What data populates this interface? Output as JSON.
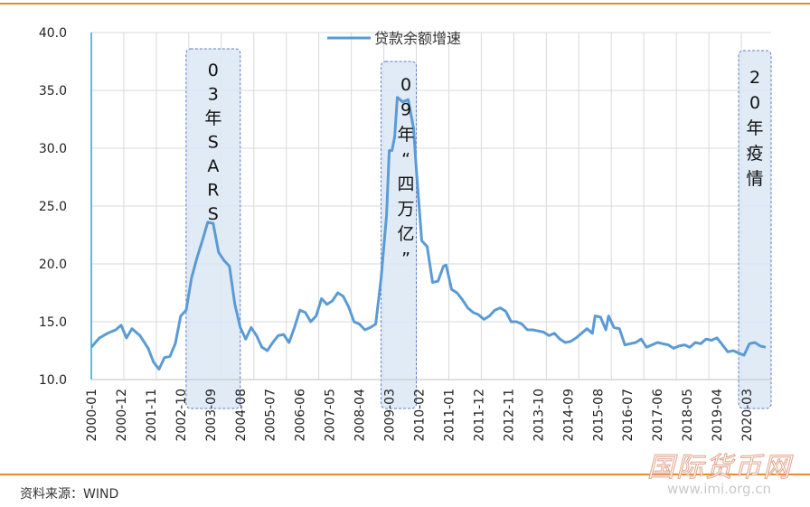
{
  "chart_data": {
    "type": "line",
    "title": "",
    "xlabel": "",
    "ylabel": "",
    "ylim": [
      10,
      40
    ],
    "yticks": [
      "10.0",
      "15.0",
      "20.0",
      "25.0",
      "30.0",
      "35.0",
      "40.0"
    ],
    "xticks": [
      "2000-01",
      "2000-12",
      "2001-11",
      "2002-10",
      "2003-09",
      "2004-08",
      "2005-07",
      "2006-06",
      "2007-05",
      "2008-04",
      "2009-03",
      "2010-02",
      "2011-01",
      "2011-12",
      "2012-11",
      "2013-10",
      "2014-09",
      "2015-08",
      "2016-07",
      "2017-06",
      "2018-05",
      "2019-04",
      "2020-03"
    ],
    "grid": true,
    "legend": "top-center",
    "line_color": "#5b9bd5",
    "series": [
      {
        "name": "贷款余额增速",
        "points": [
          [
            "2000-01",
            12.8
          ],
          [
            "2000-04",
            13.6
          ],
          [
            "2000-07",
            14.0
          ],
          [
            "2000-10",
            14.3
          ],
          [
            "2000-12",
            14.7
          ],
          [
            "2001-02",
            13.6
          ],
          [
            "2001-04",
            14.4
          ],
          [
            "2001-07",
            13.8
          ],
          [
            "2001-10",
            12.7
          ],
          [
            "2001-12",
            11.5
          ],
          [
            "2002-02",
            10.9
          ],
          [
            "2002-04",
            11.9
          ],
          [
            "2002-06",
            12.0
          ],
          [
            "2002-08",
            13.1
          ],
          [
            "2002-10",
            15.5
          ],
          [
            "2002-12",
            16.0
          ],
          [
            "2003-02",
            18.8
          ],
          [
            "2003-04",
            20.5
          ],
          [
            "2003-06",
            22.0
          ],
          [
            "2003-08",
            23.6
          ],
          [
            "2003-10",
            23.5
          ],
          [
            "2003-12",
            21.0
          ],
          [
            "2004-02",
            20.3
          ],
          [
            "2004-04",
            19.8
          ],
          [
            "2004-06",
            16.5
          ],
          [
            "2004-08",
            14.5
          ],
          [
            "2004-10",
            13.5
          ],
          [
            "2004-12",
            14.5
          ],
          [
            "2005-02",
            13.8
          ],
          [
            "2005-04",
            12.8
          ],
          [
            "2005-06",
            12.5
          ],
          [
            "2005-08",
            13.2
          ],
          [
            "2005-10",
            13.8
          ],
          [
            "2005-12",
            13.9
          ],
          [
            "2006-02",
            13.2
          ],
          [
            "2006-04",
            14.5
          ],
          [
            "2006-06",
            16.0
          ],
          [
            "2006-08",
            15.8
          ],
          [
            "2006-10",
            15.0
          ],
          [
            "2006-12",
            15.5
          ],
          [
            "2007-02",
            17.0
          ],
          [
            "2007-04",
            16.5
          ],
          [
            "2007-06",
            16.8
          ],
          [
            "2007-08",
            17.5
          ],
          [
            "2007-10",
            17.2
          ],
          [
            "2007-12",
            16.3
          ],
          [
            "2008-02",
            15.0
          ],
          [
            "2008-04",
            14.8
          ],
          [
            "2008-06",
            14.3
          ],
          [
            "2008-08",
            14.5
          ],
          [
            "2008-10",
            14.8
          ],
          [
            "2008-12",
            18.8
          ],
          [
            "2009-02",
            24.2
          ],
          [
            "2009-03",
            29.8
          ],
          [
            "2009-04",
            29.8
          ],
          [
            "2009-05",
            31.0
          ],
          [
            "2009-06",
            34.4
          ],
          [
            "2009-08",
            34.0
          ],
          [
            "2009-10",
            34.2
          ],
          [
            "2009-12",
            31.7
          ],
          [
            "2010-01",
            28.2
          ],
          [
            "2010-03",
            22.0
          ],
          [
            "2010-05",
            21.5
          ],
          [
            "2010-07",
            18.4
          ],
          [
            "2010-09",
            18.5
          ],
          [
            "2010-11",
            19.8
          ],
          [
            "2010-12",
            19.9
          ],
          [
            "2011-02",
            17.8
          ],
          [
            "2011-04",
            17.5
          ],
          [
            "2011-06",
            16.9
          ],
          [
            "2011-08",
            16.2
          ],
          [
            "2011-10",
            15.8
          ],
          [
            "2011-12",
            15.6
          ],
          [
            "2012-02",
            15.2
          ],
          [
            "2012-04",
            15.5
          ],
          [
            "2012-06",
            16.0
          ],
          [
            "2012-08",
            16.2
          ],
          [
            "2012-10",
            15.9
          ],
          [
            "2012-12",
            15.0
          ],
          [
            "2013-02",
            15.0
          ],
          [
            "2013-04",
            14.8
          ],
          [
            "2013-06",
            14.3
          ],
          [
            "2013-08",
            14.3
          ],
          [
            "2013-10",
            14.2
          ],
          [
            "2013-12",
            14.1
          ],
          [
            "2014-02",
            13.8
          ],
          [
            "2014-04",
            14.0
          ],
          [
            "2014-06",
            13.5
          ],
          [
            "2014-08",
            13.2
          ],
          [
            "2014-10",
            13.3
          ],
          [
            "2014-12",
            13.6
          ],
          [
            "2015-02",
            14.0
          ],
          [
            "2015-04",
            14.4
          ],
          [
            "2015-06",
            14.0
          ],
          [
            "2015-07",
            15.5
          ],
          [
            "2015-09",
            15.4
          ],
          [
            "2015-11",
            14.3
          ],
          [
            "2015-12",
            15.5
          ],
          [
            "2016-02",
            14.5
          ],
          [
            "2016-04",
            14.4
          ],
          [
            "2016-06",
            13.0
          ],
          [
            "2016-08",
            13.1
          ],
          [
            "2016-10",
            13.2
          ],
          [
            "2016-12",
            13.5
          ],
          [
            "2017-02",
            12.8
          ],
          [
            "2017-04",
            13.0
          ],
          [
            "2017-06",
            13.2
          ],
          [
            "2017-08",
            13.1
          ],
          [
            "2017-10",
            13.0
          ],
          [
            "2017-12",
            12.7
          ],
          [
            "2018-02",
            12.9
          ],
          [
            "2018-04",
            13.0
          ],
          [
            "2018-06",
            12.8
          ],
          [
            "2018-08",
            13.2
          ],
          [
            "2018-10",
            13.1
          ],
          [
            "2018-12",
            13.5
          ],
          [
            "2019-02",
            13.4
          ],
          [
            "2019-04",
            13.6
          ],
          [
            "2019-06",
            13.0
          ],
          [
            "2019-08",
            12.4
          ],
          [
            "2019-10",
            12.5
          ],
          [
            "2019-12",
            12.3
          ],
          [
            "2020-02",
            12.1
          ],
          [
            "2020-04",
            13.1
          ],
          [
            "2020-06",
            13.2
          ],
          [
            "2020-08",
            12.9
          ],
          [
            "2020-10",
            12.8
          ]
        ]
      }
    ],
    "highlights": [
      {
        "start": "2002-12",
        "end": "2004-08",
        "label": "03年SARS"
      },
      {
        "start": "2008-12",
        "end": "2010-01",
        "label": "09年“四万亿”"
      },
      {
        "start": "2019-12",
        "end": "2020-12",
        "label": "20年疫情"
      }
    ]
  },
  "footer": {
    "source": "资料来源：WIND",
    "watermark_cn": "国际货币网",
    "watermark_url": "www.imi.org.cn"
  },
  "colors": {
    "accent_rule": "#e98a2e",
    "highlight_fill": "#dce8f5",
    "highlight_border": "#5b7ec2",
    "axis": "#21a9d8"
  }
}
